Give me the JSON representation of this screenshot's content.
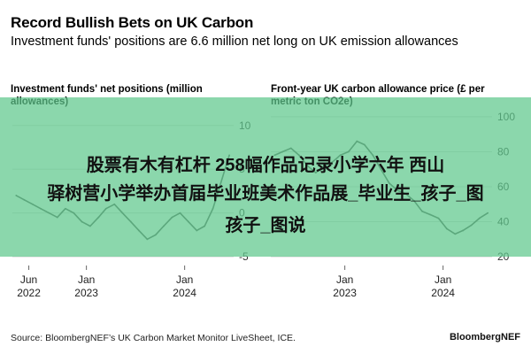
{
  "header": {
    "title": "Record Bullish Bets on UK Carbon",
    "subtitle": "Investment funds' positions are 6.6 million net long on UK emission allowances"
  },
  "colors": {
    "line": "#555555",
    "grid": "#d9d9d9",
    "overlay": "#5ec88c"
  },
  "chart_data": [
    {
      "type": "line",
      "title": "Investment funds' net positions (million allowances)",
      "x_ticks": [
        "Jun\n2022",
        "Jan\n2023",
        "Jan\n2024"
      ],
      "x_tick_dates": [
        "2022-06-01",
        "2023-01-01",
        "2024-01-01"
      ],
      "y_ticks": [
        10,
        5,
        0,
        -5
      ],
      "ylim": [
        -6,
        12
      ],
      "grid": true,
      "series": [
        {
          "x": [
            "2022-04-15",
            "2022-05-15",
            "2022-06-15",
            "2022-07-15",
            "2022-08-15",
            "2022-09-15",
            "2022-10-15",
            "2022-11-15",
            "2022-12-15",
            "2023-01-15",
            "2023-02-15",
            "2023-03-15",
            "2023-04-15",
            "2023-05-15",
            "2023-06-15",
            "2023-07-15",
            "2023-08-15",
            "2023-09-15",
            "2023-10-15",
            "2023-11-15",
            "2023-12-15",
            "2024-01-15",
            "2024-02-15",
            "2024-03-15",
            "2024-04-15",
            "2024-05-15",
            "2024-06-15"
          ],
          "values": [
            2.0,
            1.5,
            1.0,
            0.5,
            0.0,
            -0.5,
            0.5,
            0.0,
            -1.0,
            -1.5,
            -0.5,
            0.5,
            1.0,
            0.0,
            -1.0,
            -2.0,
            -3.0,
            -2.5,
            -1.5,
            -0.5,
            0.0,
            -1.0,
            -2.0,
            -1.5,
            0.5,
            3.5,
            6.6
          ]
        }
      ]
    },
    {
      "type": "line",
      "title": "Front-year UK carbon allowance price (£ per metric ton CO2e)",
      "x_ticks": [
        "Jan\n2023",
        "Jan\n2024"
      ],
      "x_tick_dates": [
        "2023-01-01",
        "2024-01-01"
      ],
      "y_ticks": [
        100,
        80,
        60,
        40,
        20
      ],
      "ylim": [
        15,
        105
      ],
      "grid": true,
      "series": [
        {
          "x": [
            "2022-04-15",
            "2022-05-15",
            "2022-06-15",
            "2022-07-15",
            "2022-08-15",
            "2022-09-15",
            "2022-10-15",
            "2022-11-15",
            "2022-12-15",
            "2023-01-15",
            "2023-02-15",
            "2023-03-15",
            "2023-04-15",
            "2023-05-15",
            "2023-06-15",
            "2023-07-15",
            "2023-08-15",
            "2023-09-15",
            "2023-10-15",
            "2023-11-15",
            "2023-12-15",
            "2024-01-15",
            "2024-02-15",
            "2024-03-15",
            "2024-04-15",
            "2024-05-15",
            "2024-06-15"
          ],
          "values": [
            78,
            80,
            82,
            78,
            72,
            68,
            72,
            74,
            78,
            80,
            86,
            84,
            78,
            70,
            62,
            58,
            56,
            52,
            46,
            44,
            42,
            36,
            33,
            35,
            38,
            42,
            45
          ]
        }
      ]
    }
  ],
  "footer": {
    "source": "Source: BloombergNEF’s UK Carbon Market Monitor LiveSheet, ICE.",
    "brand": "BloombergNEF"
  },
  "overlay": {
    "line1": "股票有木有杠杆 258幅作品记录小学六年 西山",
    "line2": "驿树营小学举办首届毕业班美术作品展_毕业生_孩子_图",
    "line3": "孩子_图说"
  }
}
